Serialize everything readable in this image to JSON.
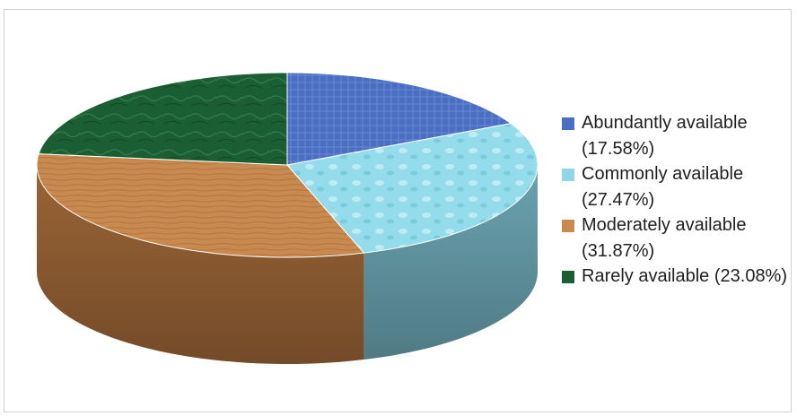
{
  "chart_data": {
    "type": "pie",
    "title": "",
    "categories": [
      "Abundantly available",
      "Commonly available",
      "Moderately available",
      "Rarely available"
    ],
    "values": [
      17.58,
      27.47,
      31.87,
      23.08
    ],
    "legend_labels": [
      "Abundantly available (17.58%)",
      "Commonly available (27.47%)",
      "Moderately available (31.87%)",
      "Rarely available (23.08%)"
    ],
    "colors": [
      "#4a6fc2",
      "#8fd6e8",
      "#c98a50",
      "#1b5e34"
    ],
    "side_colors": [
      "#3a568f",
      "#6aa3b0",
      "#9a6436",
      "#123f23"
    ],
    "legend_position": "right",
    "style": "3d-pie"
  }
}
